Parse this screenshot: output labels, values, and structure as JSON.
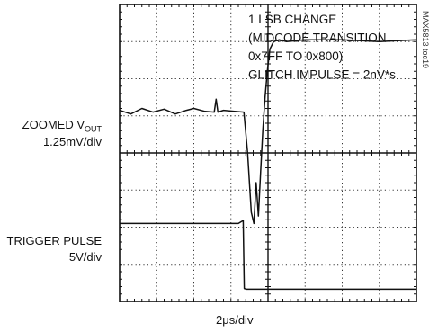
{
  "chart_data": {
    "type": "line",
    "title": "",
    "annotation_lines": [
      "1 LSB CHANGE",
      "(MIDCODE TRANSITION",
      "0x7FF TO 0x800)",
      "GLITCH IMPULSE = 2nV*s"
    ],
    "figure_tag": "MAX5813 toc19",
    "xlabel": "2μs/div",
    "grid": true,
    "divisions": {
      "x": 8,
      "y": 8
    },
    "xlim": [
      0,
      8
    ],
    "ylim": [
      0,
      8
    ],
    "series": [
      {
        "channel_label": "ZOOMED V",
        "channel_label_sub": "OUT",
        "scale_label": "1.25mV/div",
        "x": [
          0,
          0.3,
          0.6,
          0.9,
          1.2,
          1.5,
          1.8,
          2.0,
          2.3,
          2.55,
          2.6,
          2.65,
          2.8,
          3.1,
          3.35,
          3.45,
          3.55,
          3.62,
          3.68,
          3.74,
          3.8,
          3.86,
          3.92,
          3.98,
          4.05,
          4.15,
          4.3,
          4.5,
          5.0,
          6.0,
          7.0,
          8.0
        ],
        "y": [
          5.15,
          5.05,
          5.2,
          5.1,
          5.18,
          5.05,
          5.15,
          5.2,
          5.12,
          5.1,
          5.45,
          5.1,
          5.15,
          5.12,
          5.1,
          4.0,
          2.4,
          2.1,
          3.2,
          2.3,
          3.5,
          4.6,
          5.5,
          6.2,
          6.8,
          7.0,
          7.05,
          7.0,
          7.05,
          7.05,
          7.0,
          7.05
        ]
      },
      {
        "channel_label": "TRIGGER PULSE",
        "scale_label": "5V/div",
        "x": [
          0,
          1.5,
          3.2,
          3.33,
          3.36,
          3.42,
          4.0,
          6.0,
          8.0
        ],
        "y": [
          2.1,
          2.1,
          2.1,
          2.18,
          0.35,
          0.33,
          0.33,
          0.33,
          0.33
        ]
      }
    ]
  }
}
